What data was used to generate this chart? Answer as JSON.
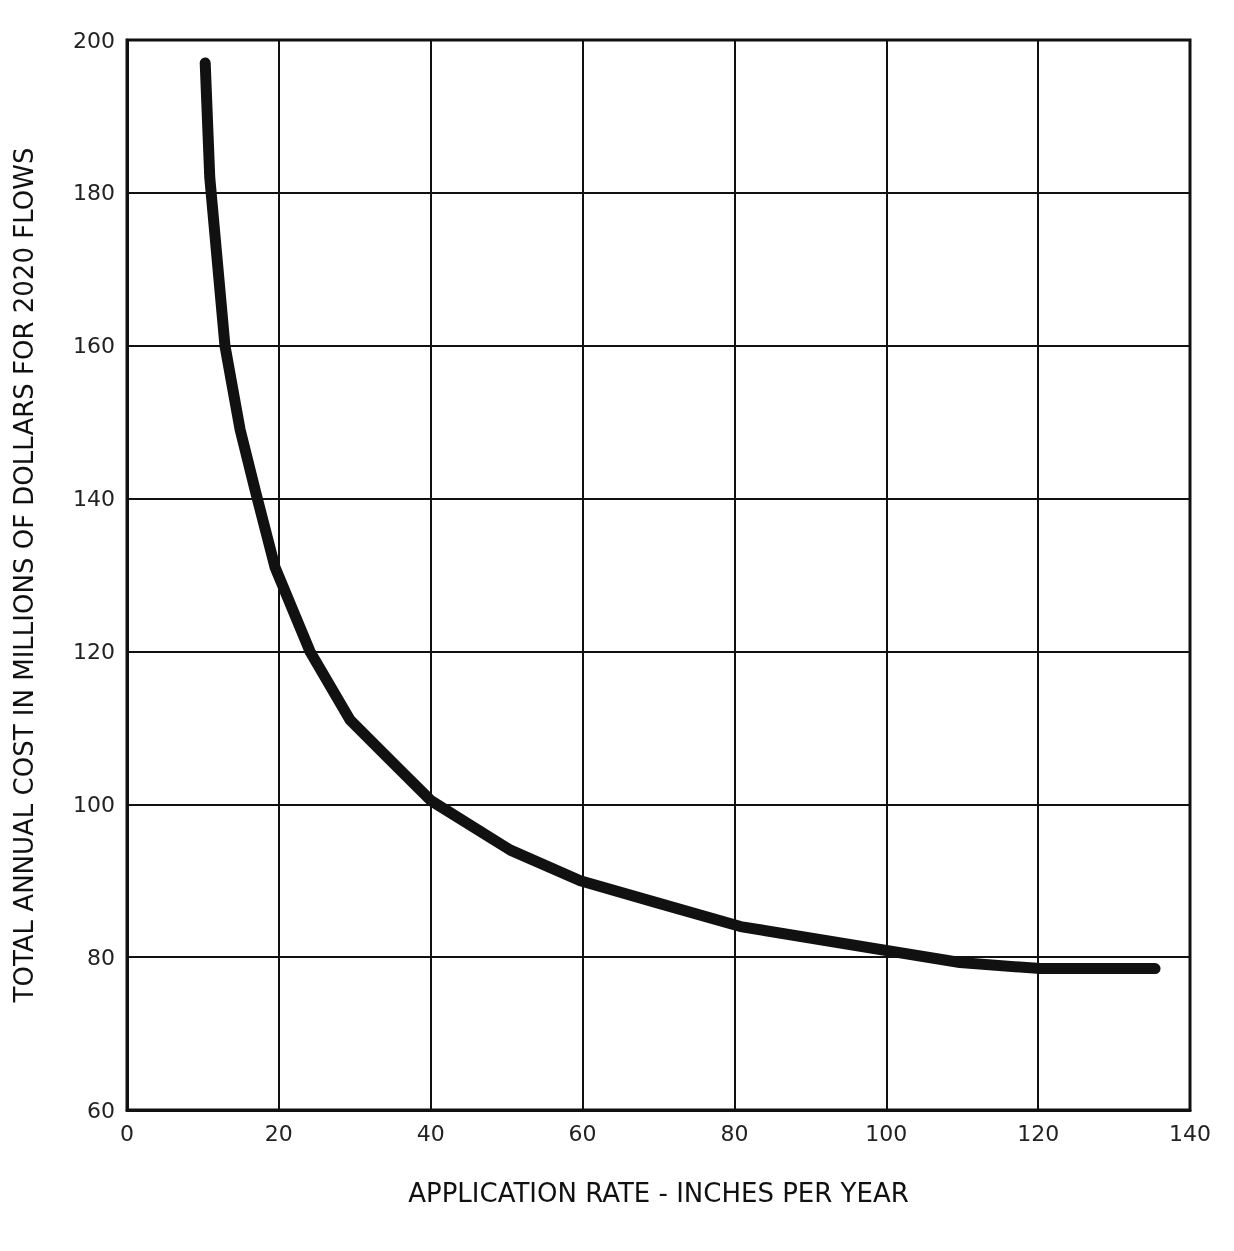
{
  "chart_data": {
    "type": "line",
    "xlabel": "APPLICATION RATE - INCHES PER YEAR",
    "ylabel": "TOTAL ANNUAL COST IN MILLIONS OF DOLLARS FOR 2020 FLOWS",
    "series": [
      {
        "color": "#111111",
        "x": [
          10.3,
          10.9,
          12.9,
          14.9,
          16.9,
          19.5,
          24.1,
          29.4,
          40,
          50.5,
          59.7,
          70.2,
          80.8,
          99.2,
          109.7,
          120.3,
          135.4
        ],
        "values": [
          197,
          182,
          160,
          149,
          141,
          131,
          120,
          111,
          100.5,
          94,
          90,
          87,
          84,
          81,
          79.3,
          78.5,
          78.5
        ]
      }
    ],
    "xlim": [
      0,
      140
    ],
    "xticks": [
      0,
      20,
      40,
      60,
      80,
      100,
      120,
      140
    ],
    "ylim": [
      60,
      200
    ],
    "yticks": [
      60,
      80,
      100,
      120,
      140,
      160,
      180,
      200
    ],
    "grid": true,
    "line_style": "solid"
  }
}
